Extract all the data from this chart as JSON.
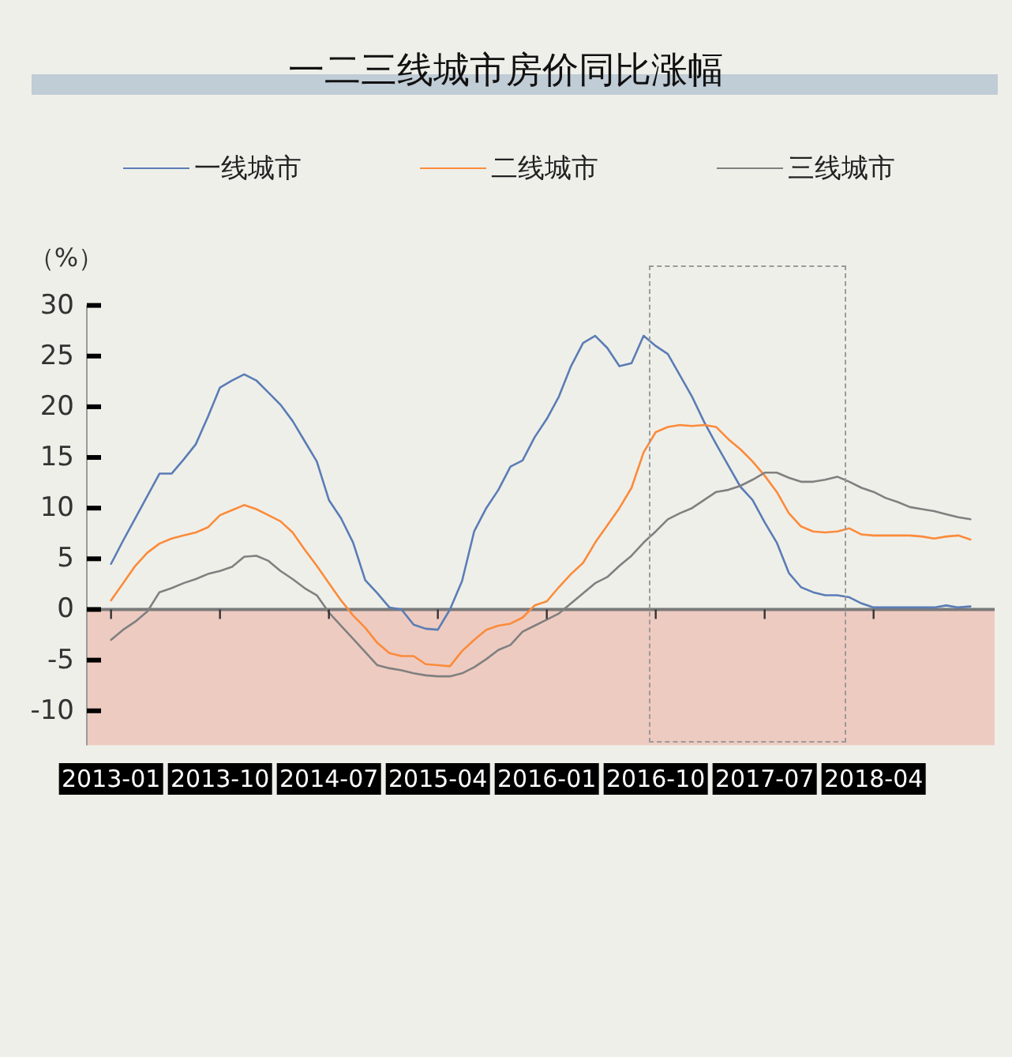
{
  "chart_data": {
    "type": "line",
    "title": "一二三线城市房价同比涨幅",
    "ylabel": "（%）",
    "x": [
      "2013-01",
      "2013-02",
      "2013-03",
      "2013-04",
      "2013-05",
      "2013-06",
      "2013-07",
      "2013-08",
      "2013-09",
      "2013-10",
      "2013-11",
      "2013-12",
      "2014-01",
      "2014-02",
      "2014-03",
      "2014-04",
      "2014-05",
      "2014-06",
      "2014-07",
      "2014-08",
      "2014-09",
      "2014-10",
      "2014-11",
      "2014-12",
      "2015-01",
      "2015-02",
      "2015-03",
      "2015-04",
      "2015-05",
      "2015-06",
      "2015-07",
      "2015-08",
      "2015-09",
      "2015-10",
      "2015-11",
      "2015-12",
      "2016-01",
      "2016-02",
      "2016-03",
      "2016-04",
      "2016-05",
      "2016-06",
      "2016-07",
      "2016-08",
      "2016-09",
      "2016-10",
      "2016-11",
      "2016-12",
      "2017-01",
      "2017-02",
      "2017-03",
      "2017-04",
      "2017-05",
      "2017-06",
      "2017-07",
      "2017-08",
      "2017-09",
      "2017-10",
      "2017-11",
      "2017-12",
      "2018-01",
      "2018-02",
      "2018-03",
      "2018-04",
      "2018-05",
      "2018-06",
      "2018-07",
      "2018-08",
      "2018-09",
      "2018-10",
      "2018-11",
      "2018-12"
    ],
    "xlim": [
      "2012-11",
      "2019-02"
    ],
    "xticks": [
      "2013-01",
      "2013-10",
      "2014-07",
      "2015-04",
      "2016-01",
      "2016-10",
      "2017-07",
      "2018-04"
    ],
    "ylim": [
      -13.4,
      30
    ],
    "yticks": [
      -10,
      -5,
      0,
      5,
      10,
      15,
      20,
      25,
      30
    ],
    "series": [
      {
        "name": "一线城市",
        "color": "#5a7db5",
        "values": [
          4.5,
          6.8,
          9.0,
          11.2,
          13.4,
          13.4,
          14.8,
          16.3,
          19.0,
          21.9,
          22.6,
          23.2,
          22.6,
          21.4,
          20.2,
          18.6,
          16.6,
          14.6,
          10.8,
          9.0,
          6.6,
          2.9,
          1.6,
          0.2,
          0.0,
          -1.5,
          -1.9,
          -2.0,
          0.0,
          2.8,
          7.7,
          10.0,
          11.8,
          14.1,
          14.7,
          17.0,
          18.8,
          21.0,
          24.0,
          26.3,
          27.0,
          25.8,
          24.0,
          24.3,
          27.0,
          26.0,
          25.2,
          23.1,
          21.0,
          18.5,
          16.3,
          14.2,
          12.1,
          10.8,
          8.6,
          6.6,
          3.6,
          2.2,
          1.7,
          1.4,
          1.4,
          1.2,
          0.6,
          0.2,
          0.2,
          0.2,
          0.2,
          0.2,
          0.2,
          0.4,
          0.2,
          0.3
        ]
      },
      {
        "name": "二线城市",
        "color": "#fb8b3a",
        "values": [
          0.9,
          2.6,
          4.3,
          5.6,
          6.5,
          7.0,
          7.3,
          7.6,
          8.1,
          9.3,
          9.8,
          10.3,
          9.9,
          9.3,
          8.7,
          7.6,
          5.9,
          4.3,
          2.6,
          0.9,
          -0.6,
          -1.8,
          -3.3,
          -4.3,
          -4.6,
          -4.6,
          -5.4,
          -5.5,
          -5.6,
          -4.1,
          -3.0,
          -2.0,
          -1.6,
          -1.4,
          -0.8,
          0.4,
          0.8,
          2.2,
          3.5,
          4.6,
          6.6,
          8.3,
          10.0,
          12.0,
          15.5,
          17.5,
          18.0,
          18.2,
          18.1,
          18.2,
          18.0,
          16.8,
          15.8,
          14.6,
          13.2,
          11.6,
          9.5,
          8.2,
          7.7,
          7.6,
          7.7,
          8.0,
          7.4,
          7.3,
          7.3,
          7.3,
          7.3,
          7.2,
          7.0,
          7.2,
          7.3,
          6.9
        ]
      },
      {
        "name": "三线城市",
        "color": "#808080",
        "values": [
          -3.0,
          -2.0,
          -1.2,
          -0.2,
          1.7,
          2.1,
          2.6,
          3.0,
          3.5,
          3.8,
          4.2,
          5.2,
          5.3,
          4.8,
          3.8,
          3.0,
          2.1,
          1.4,
          -0.3,
          -1.6,
          -2.9,
          -4.2,
          -5.5,
          -5.8,
          -6.0,
          -6.3,
          -6.5,
          -6.6,
          -6.6,
          -6.3,
          -5.7,
          -4.9,
          -4.0,
          -3.5,
          -2.2,
          -1.6,
          -1.0,
          -0.4,
          0.6,
          1.6,
          2.6,
          3.2,
          4.3,
          5.3,
          6.6,
          7.7,
          8.9,
          9.5,
          10.0,
          10.8,
          11.6,
          11.8,
          12.2,
          12.8,
          13.5,
          13.5,
          13.0,
          12.6,
          12.6,
          12.8,
          13.1,
          12.6,
          12.0,
          11.6,
          11.0,
          10.6,
          10.1,
          9.9,
          9.7,
          9.4,
          9.1,
          8.9
        ]
      }
    ],
    "bands": [
      {
        "axis": "y",
        "from": -13.4,
        "to": 0,
        "color": "#eecbc1"
      }
    ],
    "legend": "top",
    "line_style": "solid"
  }
}
